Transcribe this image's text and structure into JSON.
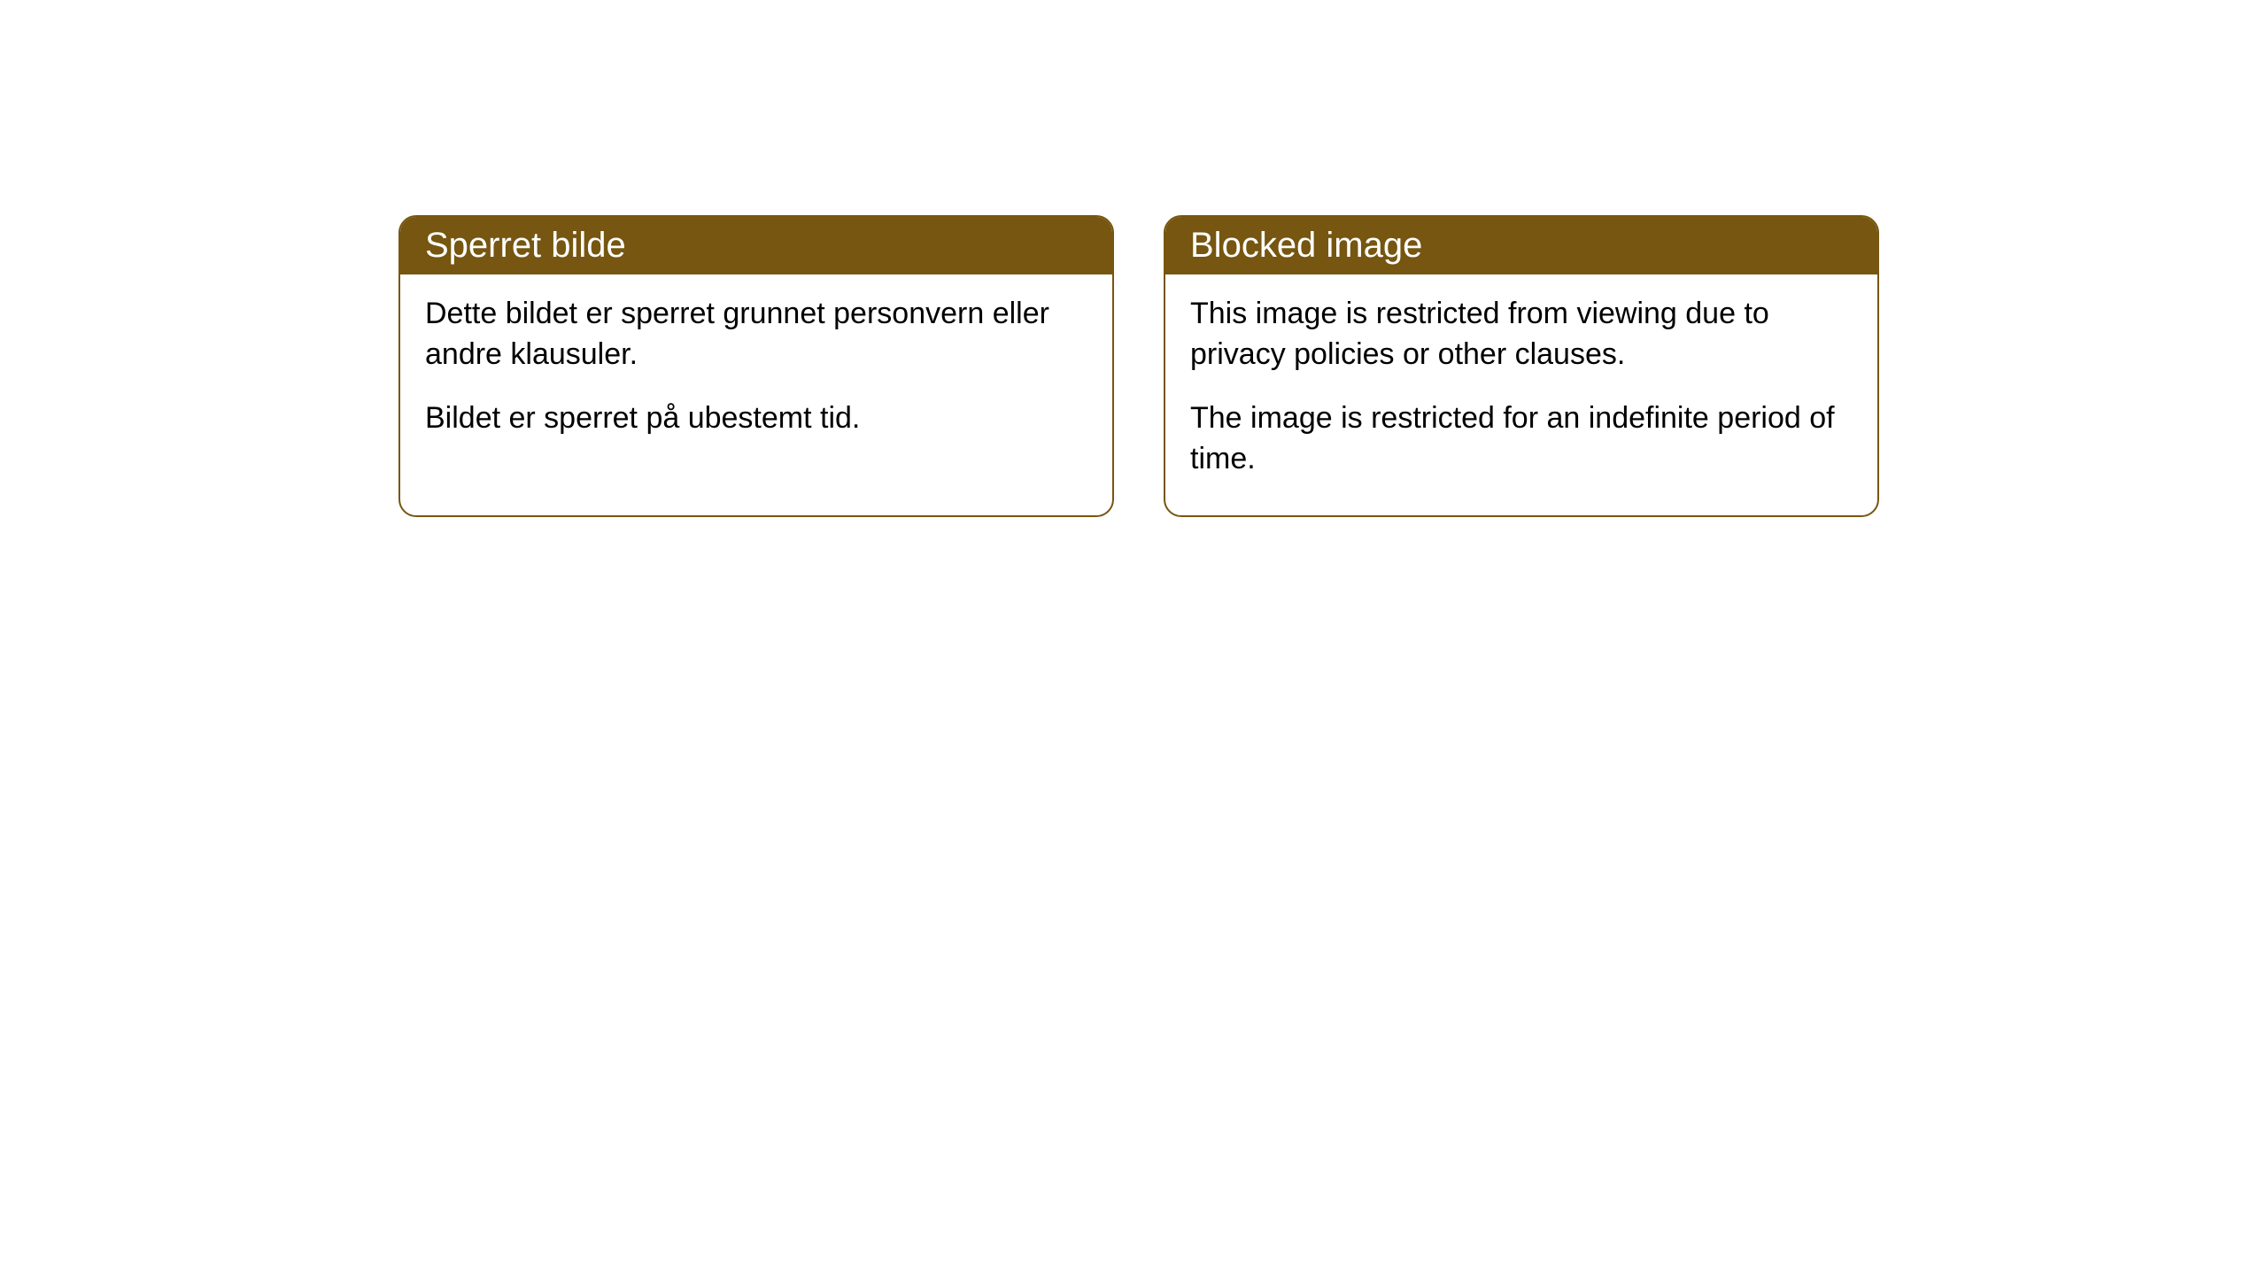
{
  "cards": [
    {
      "title": "Sperret bilde",
      "paragraph1": "Dette bildet er sperret grunnet personvern eller andre klausuler.",
      "paragraph2": "Bildet er sperret på ubestemt tid."
    },
    {
      "title": "Blocked image",
      "paragraph1": "This image is restricted from viewing due to privacy policies or other clauses.",
      "paragraph2": "The image is restricted for an indefinite period of time."
    }
  ],
  "styling": {
    "header_background": "#765610",
    "header_text_color": "#ffffff",
    "border_color": "#765610",
    "card_background": "#ffffff",
    "body_text_color": "#000000",
    "border_radius": "20px",
    "header_font_size": "40px",
    "body_font_size": "34px"
  }
}
